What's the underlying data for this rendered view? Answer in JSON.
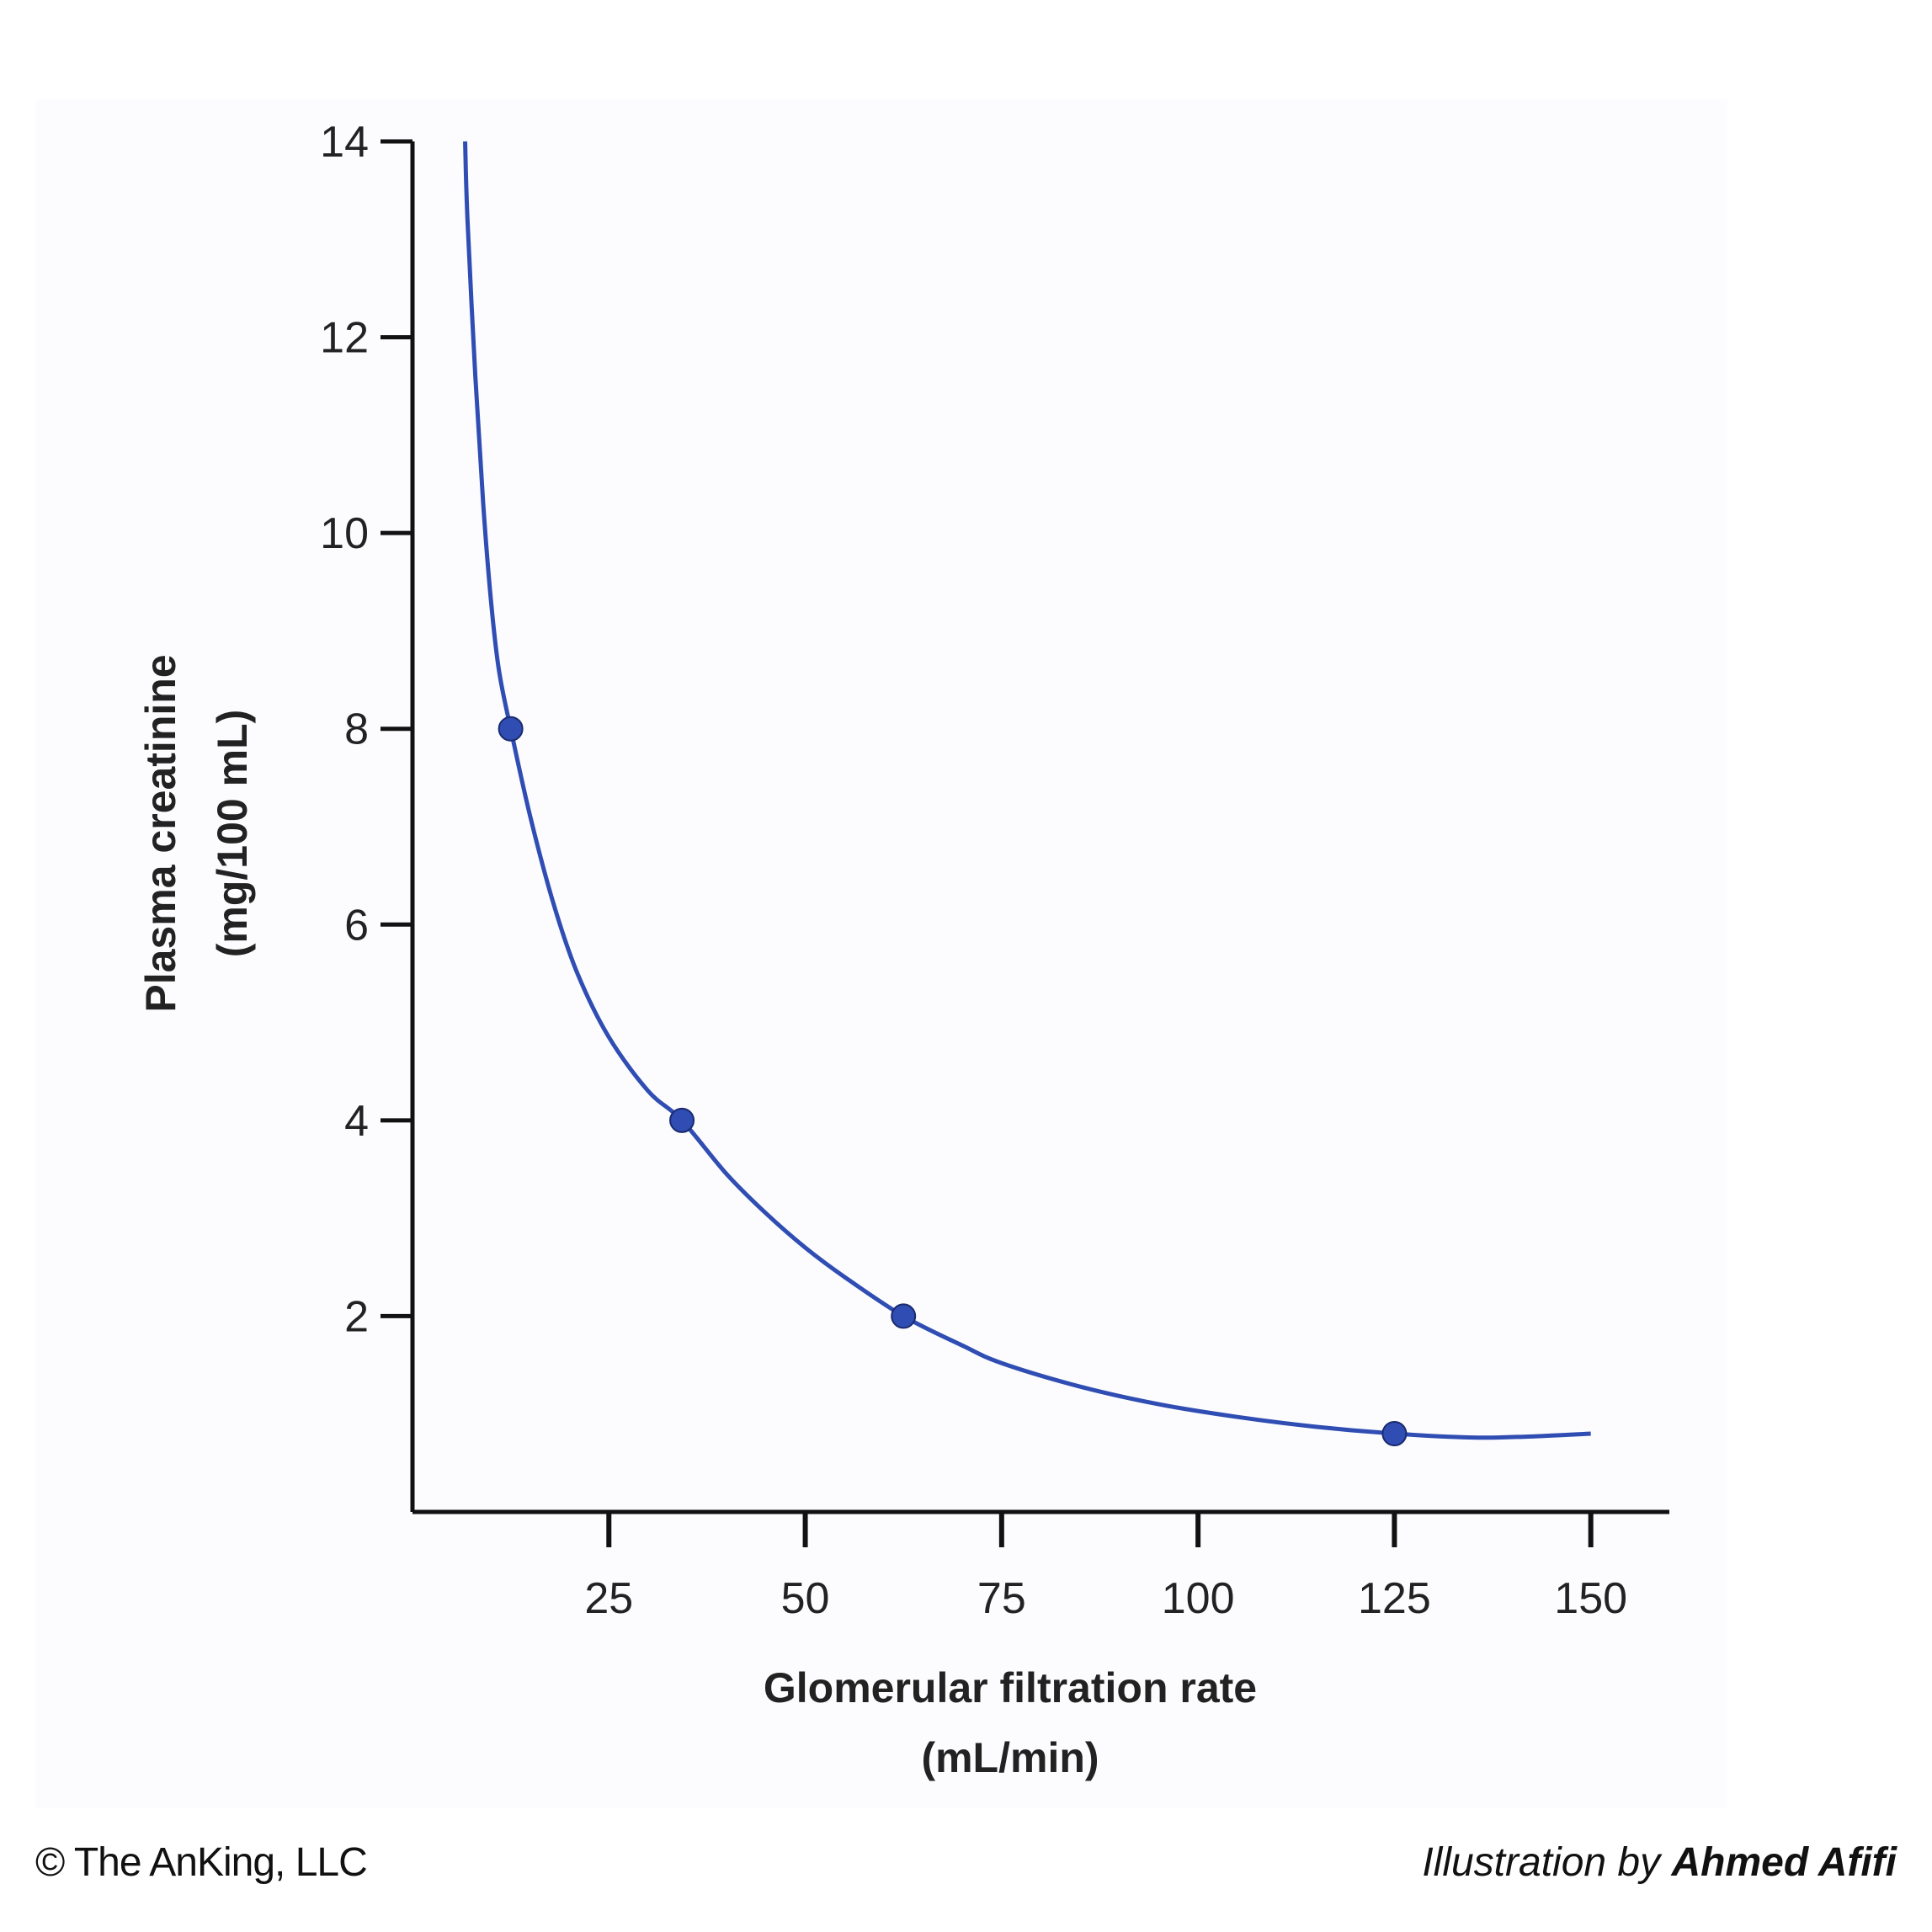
{
  "chart_data": {
    "type": "line",
    "xlabel_line1": "Glomerular filtration rate",
    "xlabel_line2": "(mL/min)",
    "ylabel_line1": "Plasma creatinine",
    "ylabel_line2": "(mg/100 mL)",
    "x_ticks": [
      25,
      50,
      75,
      100,
      125,
      150
    ],
    "y_ticks": [
      2,
      4,
      6,
      8,
      10,
      12,
      14
    ],
    "xlim": [
      0,
      160
    ],
    "ylim": [
      0,
      14
    ],
    "grid": false,
    "series": [
      {
        "color": "#2f4db3",
        "curve": [
          [
            6.7,
            14
          ],
          [
            7,
            13.2
          ],
          [
            8,
            11.6
          ],
          [
            9,
            10.3
          ],
          [
            10,
            9.3
          ],
          [
            11,
            8.6
          ],
          [
            12.5,
            8.0
          ],
          [
            15,
            7.1
          ],
          [
            18,
            6.2
          ],
          [
            21,
            5.5
          ],
          [
            25,
            4.85
          ],
          [
            30,
            4.3
          ],
          [
            34.3,
            4.0
          ],
          [
            40,
            3.45
          ],
          [
            45,
            3.05
          ],
          [
            50,
            2.7
          ],
          [
            55,
            2.4
          ],
          [
            62.5,
            2.0
          ],
          [
            70,
            1.7
          ],
          [
            75,
            1.52
          ],
          [
            85,
            1.28
          ],
          [
            95,
            1.1
          ],
          [
            105,
            0.97
          ],
          [
            115,
            0.87
          ],
          [
            125,
            0.8
          ],
          [
            135,
            0.76
          ],
          [
            142,
            0.77
          ],
          [
            150,
            0.8
          ]
        ],
        "points": [
          {
            "x": 12.5,
            "y": 8.0
          },
          {
            "x": 34.3,
            "y": 4.0
          },
          {
            "x": 62.5,
            "y": 2.0
          },
          {
            "x": 125,
            "y": 0.8
          }
        ]
      }
    ]
  },
  "footer": {
    "copyright": "© The AnKing, LLC",
    "credit_prefix": "Illustration by ",
    "credit_author": "Ahmed Afifi"
  }
}
